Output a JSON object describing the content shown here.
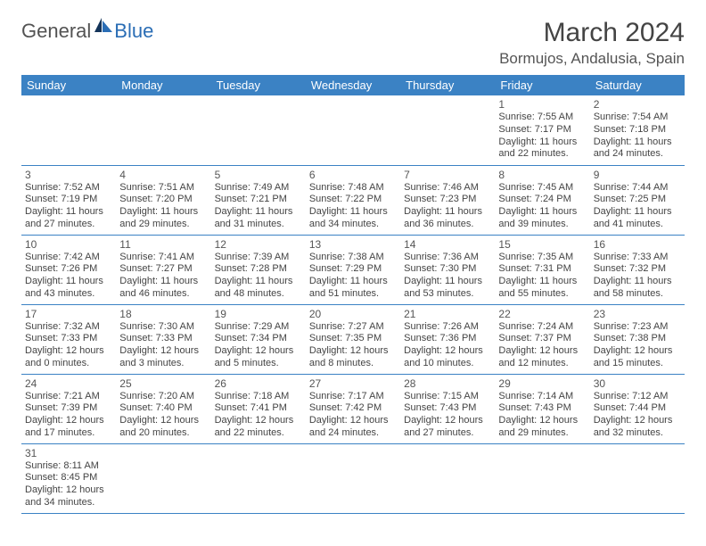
{
  "logo": {
    "general": "General",
    "blue": "Blue"
  },
  "title": "March 2024",
  "location": "Bormujos, Andalusia, Spain",
  "colors": {
    "header_bg": "#3b82c4",
    "header_text": "#ffffff",
    "border": "#3b82c4",
    "text": "#444444",
    "logo_gray": "#535353",
    "logo_blue": "#2a6db5"
  },
  "day_headers": [
    "Sunday",
    "Monday",
    "Tuesday",
    "Wednesday",
    "Thursday",
    "Friday",
    "Saturday"
  ],
  "weeks": [
    [
      null,
      null,
      null,
      null,
      null,
      {
        "n": "1",
        "sr": "Sunrise: 7:55 AM",
        "ss": "Sunset: 7:17 PM",
        "d1": "Daylight: 11 hours",
        "d2": "and 22 minutes."
      },
      {
        "n": "2",
        "sr": "Sunrise: 7:54 AM",
        "ss": "Sunset: 7:18 PM",
        "d1": "Daylight: 11 hours",
        "d2": "and 24 minutes."
      }
    ],
    [
      {
        "n": "3",
        "sr": "Sunrise: 7:52 AM",
        "ss": "Sunset: 7:19 PM",
        "d1": "Daylight: 11 hours",
        "d2": "and 27 minutes."
      },
      {
        "n": "4",
        "sr": "Sunrise: 7:51 AM",
        "ss": "Sunset: 7:20 PM",
        "d1": "Daylight: 11 hours",
        "d2": "and 29 minutes."
      },
      {
        "n": "5",
        "sr": "Sunrise: 7:49 AM",
        "ss": "Sunset: 7:21 PM",
        "d1": "Daylight: 11 hours",
        "d2": "and 31 minutes."
      },
      {
        "n": "6",
        "sr": "Sunrise: 7:48 AM",
        "ss": "Sunset: 7:22 PM",
        "d1": "Daylight: 11 hours",
        "d2": "and 34 minutes."
      },
      {
        "n": "7",
        "sr": "Sunrise: 7:46 AM",
        "ss": "Sunset: 7:23 PM",
        "d1": "Daylight: 11 hours",
        "d2": "and 36 minutes."
      },
      {
        "n": "8",
        "sr": "Sunrise: 7:45 AM",
        "ss": "Sunset: 7:24 PM",
        "d1": "Daylight: 11 hours",
        "d2": "and 39 minutes."
      },
      {
        "n": "9",
        "sr": "Sunrise: 7:44 AM",
        "ss": "Sunset: 7:25 PM",
        "d1": "Daylight: 11 hours",
        "d2": "and 41 minutes."
      }
    ],
    [
      {
        "n": "10",
        "sr": "Sunrise: 7:42 AM",
        "ss": "Sunset: 7:26 PM",
        "d1": "Daylight: 11 hours",
        "d2": "and 43 minutes."
      },
      {
        "n": "11",
        "sr": "Sunrise: 7:41 AM",
        "ss": "Sunset: 7:27 PM",
        "d1": "Daylight: 11 hours",
        "d2": "and 46 minutes."
      },
      {
        "n": "12",
        "sr": "Sunrise: 7:39 AM",
        "ss": "Sunset: 7:28 PM",
        "d1": "Daylight: 11 hours",
        "d2": "and 48 minutes."
      },
      {
        "n": "13",
        "sr": "Sunrise: 7:38 AM",
        "ss": "Sunset: 7:29 PM",
        "d1": "Daylight: 11 hours",
        "d2": "and 51 minutes."
      },
      {
        "n": "14",
        "sr": "Sunrise: 7:36 AM",
        "ss": "Sunset: 7:30 PM",
        "d1": "Daylight: 11 hours",
        "d2": "and 53 minutes."
      },
      {
        "n": "15",
        "sr": "Sunrise: 7:35 AM",
        "ss": "Sunset: 7:31 PM",
        "d1": "Daylight: 11 hours",
        "d2": "and 55 minutes."
      },
      {
        "n": "16",
        "sr": "Sunrise: 7:33 AM",
        "ss": "Sunset: 7:32 PM",
        "d1": "Daylight: 11 hours",
        "d2": "and 58 minutes."
      }
    ],
    [
      {
        "n": "17",
        "sr": "Sunrise: 7:32 AM",
        "ss": "Sunset: 7:33 PM",
        "d1": "Daylight: 12 hours",
        "d2": "and 0 minutes."
      },
      {
        "n": "18",
        "sr": "Sunrise: 7:30 AM",
        "ss": "Sunset: 7:33 PM",
        "d1": "Daylight: 12 hours",
        "d2": "and 3 minutes."
      },
      {
        "n": "19",
        "sr": "Sunrise: 7:29 AM",
        "ss": "Sunset: 7:34 PM",
        "d1": "Daylight: 12 hours",
        "d2": "and 5 minutes."
      },
      {
        "n": "20",
        "sr": "Sunrise: 7:27 AM",
        "ss": "Sunset: 7:35 PM",
        "d1": "Daylight: 12 hours",
        "d2": "and 8 minutes."
      },
      {
        "n": "21",
        "sr": "Sunrise: 7:26 AM",
        "ss": "Sunset: 7:36 PM",
        "d1": "Daylight: 12 hours",
        "d2": "and 10 minutes."
      },
      {
        "n": "22",
        "sr": "Sunrise: 7:24 AM",
        "ss": "Sunset: 7:37 PM",
        "d1": "Daylight: 12 hours",
        "d2": "and 12 minutes."
      },
      {
        "n": "23",
        "sr": "Sunrise: 7:23 AM",
        "ss": "Sunset: 7:38 PM",
        "d1": "Daylight: 12 hours",
        "d2": "and 15 minutes."
      }
    ],
    [
      {
        "n": "24",
        "sr": "Sunrise: 7:21 AM",
        "ss": "Sunset: 7:39 PM",
        "d1": "Daylight: 12 hours",
        "d2": "and 17 minutes."
      },
      {
        "n": "25",
        "sr": "Sunrise: 7:20 AM",
        "ss": "Sunset: 7:40 PM",
        "d1": "Daylight: 12 hours",
        "d2": "and 20 minutes."
      },
      {
        "n": "26",
        "sr": "Sunrise: 7:18 AM",
        "ss": "Sunset: 7:41 PM",
        "d1": "Daylight: 12 hours",
        "d2": "and 22 minutes."
      },
      {
        "n": "27",
        "sr": "Sunrise: 7:17 AM",
        "ss": "Sunset: 7:42 PM",
        "d1": "Daylight: 12 hours",
        "d2": "and 24 minutes."
      },
      {
        "n": "28",
        "sr": "Sunrise: 7:15 AM",
        "ss": "Sunset: 7:43 PM",
        "d1": "Daylight: 12 hours",
        "d2": "and 27 minutes."
      },
      {
        "n": "29",
        "sr": "Sunrise: 7:14 AM",
        "ss": "Sunset: 7:43 PM",
        "d1": "Daylight: 12 hours",
        "d2": "and 29 minutes."
      },
      {
        "n": "30",
        "sr": "Sunrise: 7:12 AM",
        "ss": "Sunset: 7:44 PM",
        "d1": "Daylight: 12 hours",
        "d2": "and 32 minutes."
      }
    ],
    [
      {
        "n": "31",
        "sr": "Sunrise: 8:11 AM",
        "ss": "Sunset: 8:45 PM",
        "d1": "Daylight: 12 hours",
        "d2": "and 34 minutes."
      },
      null,
      null,
      null,
      null,
      null,
      null
    ]
  ]
}
